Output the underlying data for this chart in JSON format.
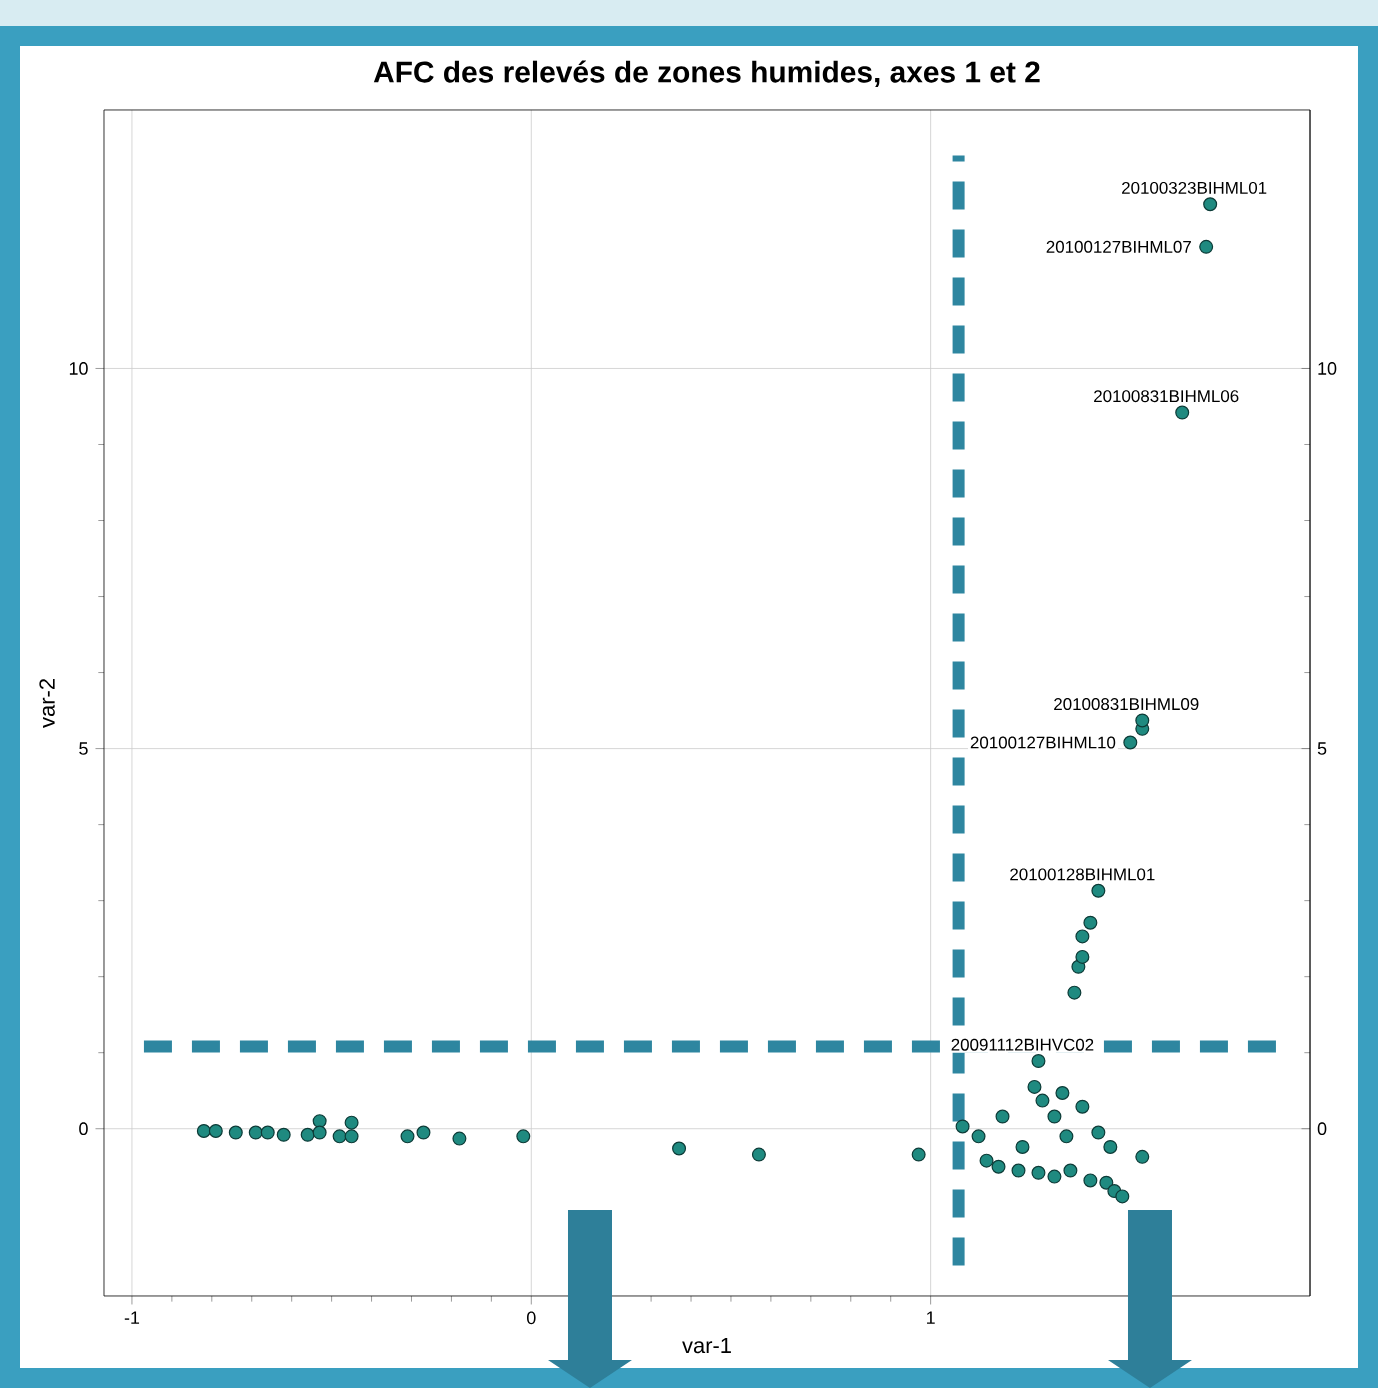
{
  "chart_data": {
    "type": "scatter",
    "title": "AFC des relevés de zones humides, axes 1 et 2",
    "xlabel": "var-1",
    "ylabel": "var-2",
    "xlim": [
      -1.07,
      1.95
    ],
    "ylim": [
      -2.2,
      13.4
    ],
    "xticks": [
      -1,
      0,
      1
    ],
    "yticks": [
      0,
      5,
      10
    ],
    "y2lim": [
      -2.2,
      13.4
    ],
    "y2ticks": [
      0,
      5,
      10
    ],
    "grid": true,
    "marker": "circle",
    "series": [
      {
        "color": "#1f8a80",
        "x": [
          -0.82,
          -0.79,
          -0.74,
          -0.69,
          -0.66,
          -0.62,
          -0.56,
          -0.53,
          -0.53,
          -0.48,
          -0.45,
          -0.45,
          -0.31,
          -0.27,
          -0.18,
          -0.02,
          0.37,
          0.57,
          0.97,
          1.08,
          1.12,
          1.14,
          1.17,
          1.18,
          1.22,
          1.23,
          1.26,
          1.27,
          1.27,
          1.28,
          1.31,
          1.31,
          1.33,
          1.34,
          1.35,
          1.36,
          1.37,
          1.38,
          1.38,
          1.38,
          1.4,
          1.4,
          1.42,
          1.42,
          1.44,
          1.45,
          1.46,
          1.48,
          1.5,
          1.53,
          1.53,
          1.53,
          1.63,
          1.69,
          1.7
        ],
        "values": [
          -0.03,
          -0.03,
          -0.05,
          -0.05,
          -0.05,
          -0.08,
          -0.08,
          0.1,
          -0.05,
          -0.1,
          0.08,
          -0.1,
          -0.1,
          -0.05,
          -0.13,
          -0.1,
          -0.26,
          -0.34,
          -0.34,
          0.03,
          -0.1,
          -0.42,
          -0.5,
          0.16,
          -0.55,
          -0.24,
          0.55,
          0.89,
          -0.58,
          0.37,
          0.16,
          -0.63,
          0.47,
          -0.1,
          -0.55,
          1.79,
          2.13,
          2.26,
          2.53,
          0.29,
          2.71,
          -0.68,
          3.13,
          -0.05,
          -0.71,
          -0.24,
          -0.82,
          -0.89,
          5.08,
          5.26,
          5.37,
          -0.37,
          9.42,
          11.6,
          12.16
        ]
      }
    ],
    "ref_lines": [
      {
        "axis": "x",
        "value": 1.07,
        "color": "#2e86a0",
        "line_style": "dashed"
      },
      {
        "axis": "y",
        "value": 1.08,
        "color": "#2e86a0",
        "line_style": "dashed"
      }
    ],
    "annotations": [
      {
        "text": "20100323BIHML01",
        "x": 1.7,
        "y": 12.16
      },
      {
        "text": "20100127BIHML07",
        "x": 1.69,
        "y": 11.6
      },
      {
        "text": "20100831BIHML06",
        "x": 1.63,
        "y": 9.42
      },
      {
        "text": "20100831BIHML09",
        "x": 1.53,
        "y": 5.37
      },
      {
        "text": "20100127BIHML10",
        "x": 1.5,
        "y": 5.08
      },
      {
        "text": "20100128BIHML01",
        "x": 1.42,
        "y": 3.13
      },
      {
        "text": "20091112BIHVC02",
        "x": 1.27,
        "y": 0.89
      }
    ]
  }
}
